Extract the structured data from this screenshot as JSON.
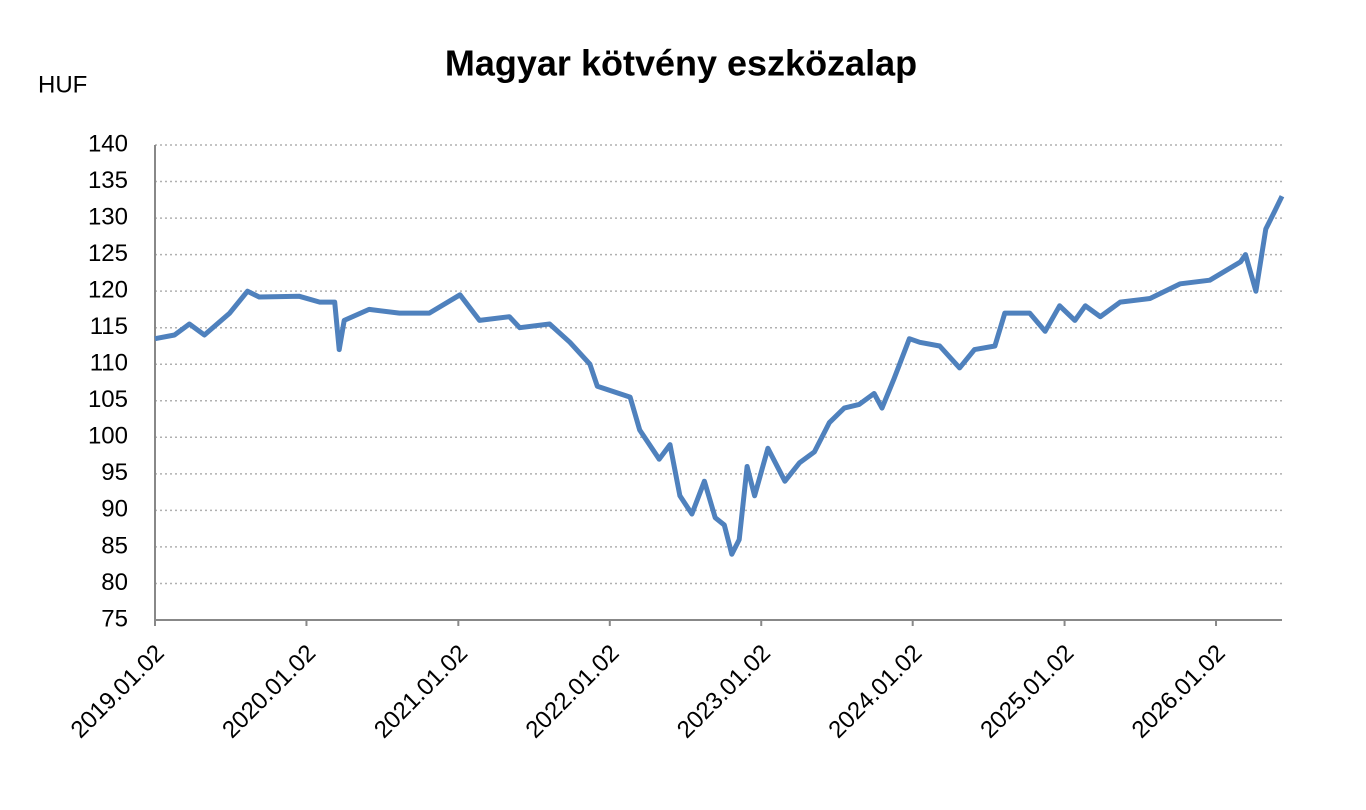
{
  "chart_data": {
    "type": "line",
    "title": "Magyar kötvény eszközalap",
    "y_label": "HUF",
    "x": [
      "2019.01.02",
      "2019.02.18",
      "2019.03.26",
      "2019.05.01",
      "2019.07.01",
      "2019.08.13",
      "2019.09.10",
      "2019.12.16",
      "2020.02.03",
      "2020.03.10",
      "2020.03.21",
      "2020.04.02",
      "2020.06.01",
      "2020.08.13",
      "2020.10.24",
      "2021.01.06",
      "2021.02.22",
      "2021.05.05",
      "2021.05.30",
      "2021.08.10",
      "2021.09.28",
      "2021.11.15",
      "2021.12.03",
      "2022.02.20",
      "2022.03.15",
      "2022.05.01",
      "2022.05.27",
      "2022.06.20",
      "2022.07.19",
      "2022.08.18",
      "2022.09.13",
      "2022.10.05",
      "2022.10.23",
      "2022.11.10",
      "2022.11.29",
      "2022.12.17",
      "2023.01.18",
      "2023.02.28",
      "2023.04.04",
      "2023.05.10",
      "2023.06.15",
      "2023.07.21",
      "2023.08.26",
      "2023.10.01",
      "2023.10.20",
      "2023.11.18",
      "2023.12.25",
      "2024.01.19",
      "2024.03.07",
      "2024.04.24",
      "2024.05.30",
      "2024.07.18",
      "2024.08.11",
      "2024.10.10",
      "2024.11.16",
      "2024.12.21",
      "2025.01.27",
      "2025.02.21",
      "2025.03.29",
      "2025.05.16",
      "2025.07.27",
      "2025.10.08",
      "2025.12.18",
      "2026.03.02",
      "2026.03.14",
      "2026.04.08",
      "2026.05.02",
      "2026.05.24",
      "2026.06.10"
    ],
    "series": [
      {
        "name": "Magyar kötvény eszközalap",
        "color": "#4f81bd",
        "values": [
          113.5,
          114.0,
          115.5,
          114.0,
          117.0,
          120.0,
          119.2,
          119.3,
          118.5,
          118.5,
          112.0,
          116.0,
          117.5,
          117.0,
          117.0,
          119.5,
          116.0,
          116.5,
          115.0,
          115.5,
          113.0,
          110.0,
          107.0,
          105.5,
          101.0,
          97.0,
          99.0,
          92.0,
          89.5,
          94.0,
          89.0,
          88.0,
          84.0,
          86.0,
          96.0,
          92.0,
          98.5,
          94.0,
          96.5,
          98.0,
          102.0,
          104.0,
          104.5,
          106.0,
          104.0,
          108.0,
          113.5,
          113.0,
          112.5,
          109.5,
          112.0,
          112.5,
          117.0,
          117.0,
          114.5,
          118.0,
          116.0,
          118.0,
          116.5,
          118.5,
          119.0,
          121.0,
          121.5,
          124.0,
          125.0,
          120.0,
          128.5,
          131.0,
          133.0
        ]
      }
    ],
    "xlim": [
      "2019.01.02",
      "2026.06.10"
    ],
    "xticks": [
      "2019.01.02",
      "2020.01.02",
      "2021.01.02",
      "2022.01.02",
      "2023.01.02",
      "2024.01.02",
      "2025.01.02",
      "2026.01.02"
    ],
    "ylim": [
      75,
      140
    ],
    "yticks": [
      75,
      80,
      85,
      90,
      95,
      100,
      105,
      110,
      115,
      120,
      125,
      130,
      135,
      140
    ],
    "grid": true
  }
}
